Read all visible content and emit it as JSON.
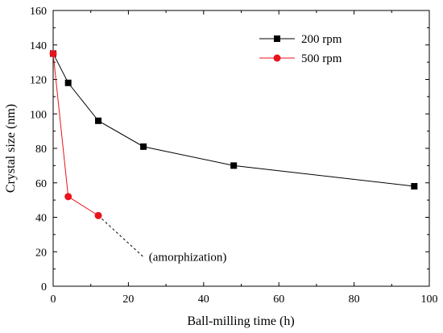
{
  "chart_data": {
    "type": "line",
    "title": "",
    "xlabel": "Ball-milling time (h)",
    "ylabel": "Crystal size (nm)",
    "xlim": [
      0,
      100
    ],
    "ylim": [
      0,
      160
    ],
    "xticks": [
      0,
      20,
      40,
      60,
      80,
      100
    ],
    "yticks": [
      0,
      20,
      40,
      60,
      80,
      100,
      120,
      140,
      160
    ],
    "grid": false,
    "legend_position": "top-right",
    "series": [
      {
        "name": "200 rpm",
        "marker": "square",
        "color": "#000000",
        "x": [
          0,
          4,
          12,
          24,
          48,
          96
        ],
        "y": [
          135,
          118,
          96,
          81,
          70,
          58
        ]
      },
      {
        "name": "500 rpm",
        "marker": "circle",
        "color": "#e8141b",
        "x": [
          0,
          4,
          12
        ],
        "y": [
          135,
          52,
          41
        ]
      }
    ],
    "extrapolation": {
      "style": "dashed",
      "color": "#000000",
      "from": [
        12,
        41
      ],
      "to": [
        24,
        17
      ]
    },
    "annotations": [
      {
        "text": "(amorphization)",
        "x": 25,
        "y": 17
      }
    ]
  }
}
